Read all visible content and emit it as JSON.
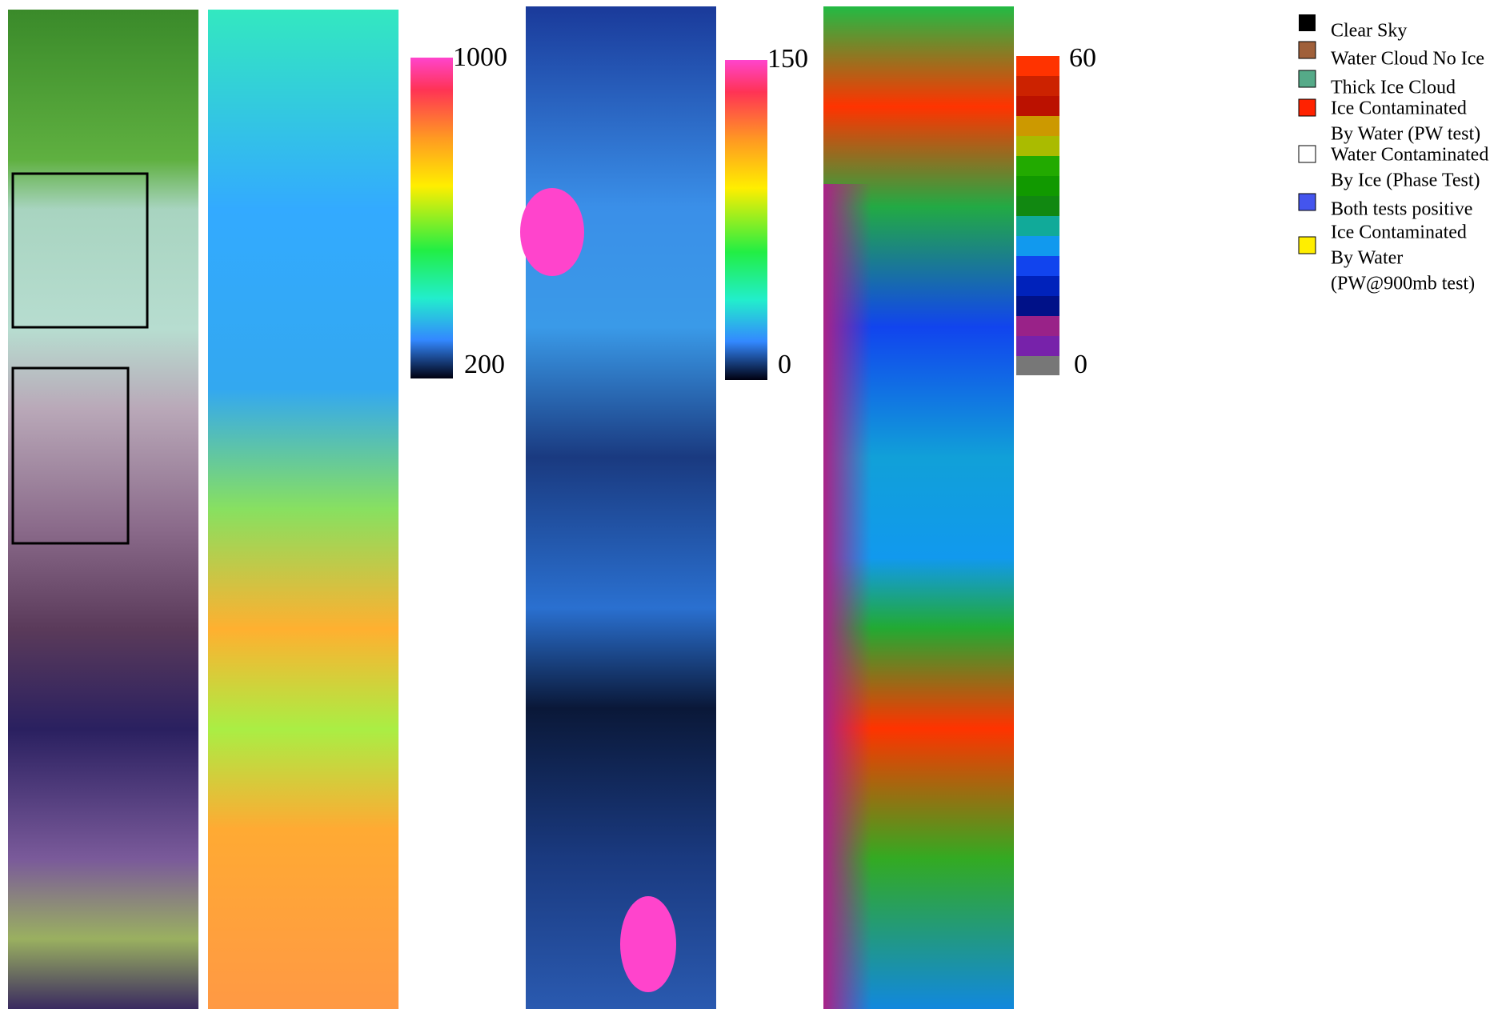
{
  "colorbars": [
    {
      "max": "1000",
      "min": "200"
    },
    {
      "max": "150",
      "min": "0"
    },
    {
      "max": "60",
      "min": "0"
    }
  ],
  "legend": [
    {
      "lines": [
        "Clear Sky"
      ]
    },
    {
      "lines": [
        "Water Cloud No Ice"
      ]
    },
    {
      "lines": [
        "Thick Ice Cloud"
      ]
    },
    {
      "lines": [
        "Ice Contaminated",
        "By Water (PW test)"
      ]
    },
    {
      "lines": [
        "Water Contaminated",
        "By Ice (Phase Test)"
      ]
    },
    {
      "lines": [
        "Both tests positive"
      ]
    },
    {
      "lines": [
        "Ice Contaminated",
        "By Water",
        "(PW@900mb test)"
      ]
    }
  ]
}
